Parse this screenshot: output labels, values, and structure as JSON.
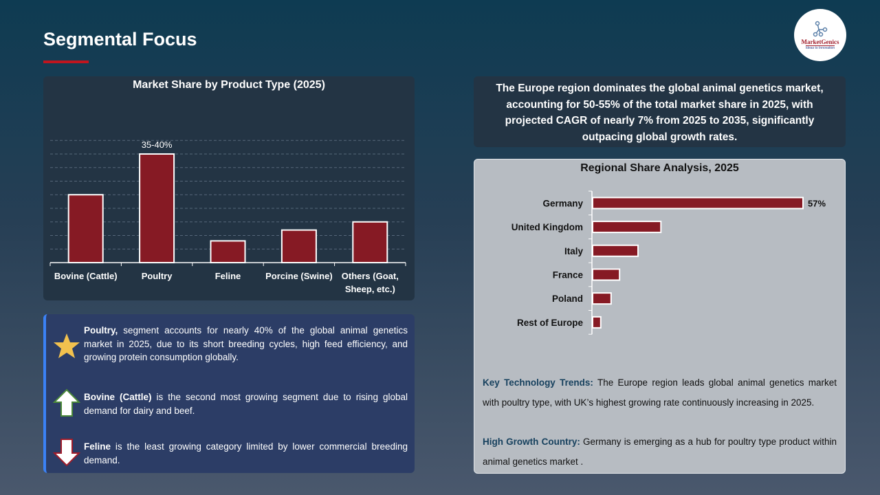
{
  "header": {
    "title": "Segmental Focus",
    "logo_text": "MarketGenics",
    "logo_tagline": "Ideas to Innovation"
  },
  "colors": {
    "bar": "#861a24",
    "accent": "#c0151e",
    "highlight_key": "#17415e"
  },
  "left_chart": {
    "chart_data": {
      "type": "bar",
      "title": "Market Share by Product Type (2025)",
      "categories": [
        "Bovine (Cattle)",
        "Poultry",
        "Feline",
        "Porcine (Swine)",
        "Others (Goat, Sheep, etc.)"
      ],
      "values": [
        25,
        40,
        8,
        12,
        15
      ],
      "data_labels": [
        "",
        "35-40%",
        "",
        "",
        ""
      ],
      "ylim": [
        0,
        45
      ],
      "grid": true,
      "xlabel": "",
      "ylabel": ""
    }
  },
  "insights": [
    {
      "icon": "star-icon",
      "bold": "Poultry,",
      "text": " segment accounts for nearly 40% of the global animal genetics market in 2025, due to its short breeding cycles, high feed efficiency, and growing protein consumption globally."
    },
    {
      "icon": "arrow-up-icon",
      "bold": "Bovine (Cattle)",
      "text": " is the second most growing segment due to rising global demand for dairy and beef."
    },
    {
      "icon": "arrow-down-icon",
      "bold": "Feline",
      "text": " is the least growing category limited by lower commercial breeding demand."
    }
  ],
  "summary": "The Europe region dominates the global animal genetics market, accounting for 50-55% of the total market share in 2025, with projected CAGR of nearly 7% from 2025 to 2035, significantly outpacing global growth rates.",
  "right_chart": {
    "chart_data": {
      "type": "bar",
      "orientation": "horizontal",
      "title": "Regional Share Analysis, 2025",
      "categories": [
        "Germany",
        "United Kingdom",
        "Italy",
        "France",
        "Poland",
        "Rest of Europe"
      ],
      "values": [
        57,
        18.5,
        12.3,
        7.3,
        5,
        2.2
      ],
      "data_labels": [
        "57%",
        "",
        "",
        "",
        "",
        ""
      ],
      "xlim": [
        0,
        60
      ],
      "grid": false
    }
  },
  "notes": [
    {
      "key": "Key Technology Trends:",
      "text": " The Europe region leads global animal genetics market with poultry type, with UK’s highest growing rate continuously increasing in 2025."
    },
    {
      "key": "High Growth Country:",
      "text": " Germany is emerging as a hub for poultry type product within animal genetics market ."
    }
  ]
}
